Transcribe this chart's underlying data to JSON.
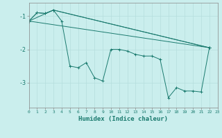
{
  "xlabel": "Humidex (Indice chaleur)",
  "background_color": "#caeeed",
  "line_color": "#1a7a6e",
  "grid_color": "#b5dedd",
  "xlim": [
    0,
    23
  ],
  "ylim": [
    -3.75,
    -0.6
  ],
  "yticks": [
    -3,
    -2,
    -1
  ],
  "xticks": [
    0,
    1,
    2,
    3,
    4,
    5,
    6,
    7,
    8,
    9,
    10,
    11,
    12,
    13,
    14,
    15,
    16,
    17,
    18,
    19,
    20,
    21,
    22,
    23
  ],
  "series": [
    {
      "x": [
        0,
        1,
        2,
        3,
        4,
        5,
        6,
        7,
        8,
        9,
        10,
        11,
        12,
        13,
        14,
        15,
        16,
        17,
        18,
        19,
        20,
        21,
        22
      ],
      "y": [
        -1.15,
        -0.9,
        -0.92,
        -0.82,
        -1.15,
        -2.5,
        -2.55,
        -2.4,
        -2.85,
        -2.95,
        -2.0,
        -2.0,
        -2.05,
        -2.15,
        -2.2,
        -2.2,
        -2.3,
        -3.45,
        -3.15,
        -3.25,
        -3.25,
        -3.28,
        -1.95
      ]
    },
    {
      "x": [
        0,
        1,
        2,
        3,
        22
      ],
      "y": [
        -1.15,
        -0.9,
        -0.92,
        -0.82,
        -1.95
      ]
    },
    {
      "x": [
        0,
        3,
        22
      ],
      "y": [
        -1.15,
        -0.82,
        -1.95
      ]
    },
    {
      "x": [
        0,
        22
      ],
      "y": [
        -1.15,
        -1.95
      ]
    }
  ]
}
